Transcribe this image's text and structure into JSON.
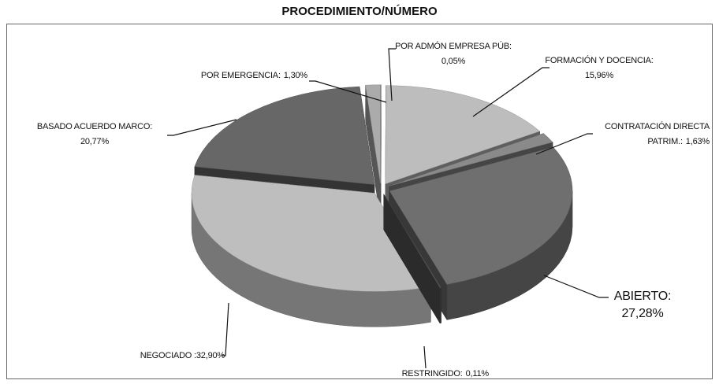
{
  "chart_data": {
    "type": "pie3d",
    "title": "PROCEDIMIENTO/NÚMERO",
    "categories": [
      "POR ADMÓN EMPRESA PÚB:",
      "FORMACIÓN Y DOCENCIA:",
      "CONTRATACIÓN DIRECTA PATRIM.:",
      "ABIERTO:",
      "RESTRINGIDO:",
      "NEGOCIADO :",
      "BASADO ACUERDO MARCO:",
      "POR EMERGENCIA:"
    ],
    "values": [
      0.05,
      15.96,
      1.63,
      27.28,
      0.11,
      32.9,
      20.77,
      1.3
    ],
    "value_labels": [
      "0,05%",
      "15,96%",
      "1,63%",
      "27,28%",
      "0,11%",
      "32,90%",
      "20,77%",
      "1,30%"
    ],
    "colors": [
      "#c8c8c8",
      "#bdbdbd",
      "#8a8a8a",
      "#6f6f6f",
      "#555555",
      "#bebebe",
      "#676767",
      "#ababab"
    ]
  }
}
